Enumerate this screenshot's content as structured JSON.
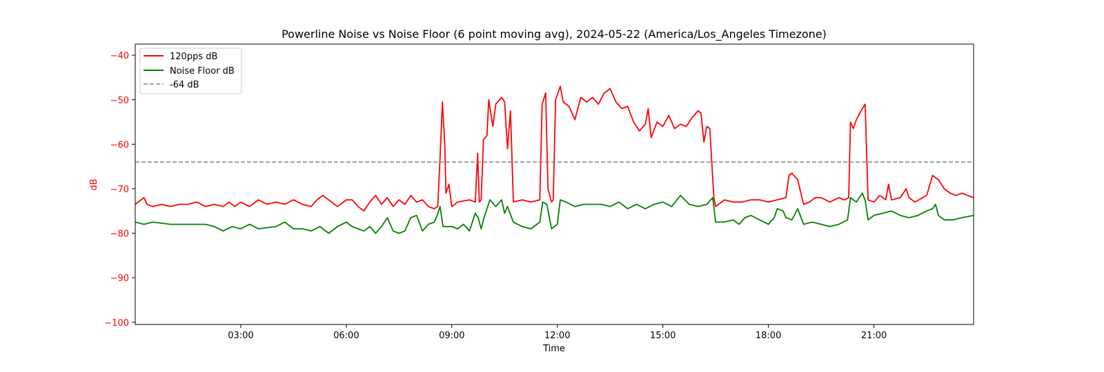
{
  "chart_data": {
    "type": "line",
    "title": "Powerline Noise vs Noise Floor (6 point moving avg), 2024-05-22 (America/Los_Angeles Timezone)",
    "xlabel": "Time",
    "ylabel": "dB",
    "ylabel_color": "#ff0000",
    "ytick_color": "#ff0000",
    "xlim": [
      "00:00",
      "23:50"
    ],
    "ylim": [
      -100.5,
      -37.5
    ],
    "xticks": [
      "03:00",
      "06:00",
      "09:00",
      "12:00",
      "15:00",
      "18:00",
      "21:00"
    ],
    "yticks": [
      -40,
      -50,
      -60,
      -70,
      -80,
      -90,
      -100
    ],
    "ytick_labels": [
      "−40",
      "−50",
      "−60",
      "−70",
      "−80",
      "−90",
      "−100"
    ],
    "grid": false,
    "legend_position": "top-left",
    "series": [
      {
        "name": "120pps dB",
        "color": "#ff0000",
        "style": "solid",
        "points": [
          [
            "00:00",
            -73.5
          ],
          [
            "00:10",
            -72.5
          ],
          [
            "00:15",
            -72.0
          ],
          [
            "00:20",
            -73.5
          ],
          [
            "00:30",
            -74.0
          ],
          [
            "00:45",
            -73.5
          ],
          [
            "01:00",
            -74.0
          ],
          [
            "01:15",
            -73.5
          ],
          [
            "01:30",
            -73.5
          ],
          [
            "01:45",
            -73.0
          ],
          [
            "02:00",
            -74.0
          ],
          [
            "02:15",
            -73.5
          ],
          [
            "02:30",
            -74.0
          ],
          [
            "02:40",
            -73.0
          ],
          [
            "02:50",
            -74.0
          ],
          [
            "03:00",
            -73.0
          ],
          [
            "03:15",
            -74.0
          ],
          [
            "03:30",
            -72.5
          ],
          [
            "03:45",
            -73.5
          ],
          [
            "04:00",
            -73.0
          ],
          [
            "04:15",
            -73.5
          ],
          [
            "04:30",
            -72.5
          ],
          [
            "04:45",
            -73.5
          ],
          [
            "05:00",
            -74.0
          ],
          [
            "05:10",
            -72.5
          ],
          [
            "05:20",
            -71.5
          ],
          [
            "05:30",
            -72.5
          ],
          [
            "05:45",
            -74.0
          ],
          [
            "06:00",
            -72.5
          ],
          [
            "06:10",
            -72.5
          ],
          [
            "06:20",
            -74.0
          ],
          [
            "06:30",
            -75.0
          ],
          [
            "06:40",
            -73.0
          ],
          [
            "06:50",
            -71.5
          ],
          [
            "07:00",
            -73.5
          ],
          [
            "07:10",
            -72.0
          ],
          [
            "07:20",
            -74.0
          ],
          [
            "07:30",
            -72.5
          ],
          [
            "07:40",
            -73.5
          ],
          [
            "07:50",
            -71.5
          ],
          [
            "08:00",
            -73.0
          ],
          [
            "08:10",
            -72.5
          ],
          [
            "08:20",
            -74.0
          ],
          [
            "08:30",
            -74.5
          ],
          [
            "08:36",
            -74.0
          ],
          [
            "08:40",
            -63.0
          ],
          [
            "08:44",
            -50.5
          ],
          [
            "08:48",
            -60.0
          ],
          [
            "08:50",
            -71.0
          ],
          [
            "08:55",
            -69.0
          ],
          [
            "09:00",
            -74.0
          ],
          [
            "09:10",
            -73.0
          ],
          [
            "09:30",
            -72.5
          ],
          [
            "09:40",
            -73.0
          ],
          [
            "09:44",
            -62.0
          ],
          [
            "09:47",
            -73.0
          ],
          [
            "09:50",
            -72.5
          ],
          [
            "09:54",
            -59.0
          ],
          [
            "10:00",
            -58.0
          ],
          [
            "10:03",
            -50.0
          ],
          [
            "10:10",
            -56.0
          ],
          [
            "10:15",
            -51.0
          ],
          [
            "10:25",
            -49.5
          ],
          [
            "10:30",
            -50.5
          ],
          [
            "10:35",
            -61.0
          ],
          [
            "10:40",
            -52.5
          ],
          [
            "10:45",
            -73.0
          ],
          [
            "11:00",
            -72.5
          ],
          [
            "11:15",
            -73.0
          ],
          [
            "11:30",
            -72.5
          ],
          [
            "11:34",
            -51.0
          ],
          [
            "11:40",
            -48.5
          ],
          [
            "11:44",
            -70.0
          ],
          [
            "11:50",
            -73.0
          ],
          [
            "11:53",
            -72.5
          ],
          [
            "11:57",
            -50.0
          ],
          [
            "12:05",
            -47.0
          ],
          [
            "12:10",
            -50.5
          ],
          [
            "12:20",
            -51.5
          ],
          [
            "12:30",
            -54.5
          ],
          [
            "12:40",
            -49.5
          ],
          [
            "12:50",
            -50.5
          ],
          [
            "13:00",
            -49.5
          ],
          [
            "13:10",
            -51.0
          ],
          [
            "13:20",
            -48.5
          ],
          [
            "13:30",
            -47.5
          ],
          [
            "13:40",
            -50.5
          ],
          [
            "13:50",
            -52.0
          ],
          [
            "14:00",
            -51.5
          ],
          [
            "14:10",
            -55.0
          ],
          [
            "14:20",
            -57.0
          ],
          [
            "14:30",
            -55.5
          ],
          [
            "14:35",
            -52.0
          ],
          [
            "14:40",
            -58.5
          ],
          [
            "14:50",
            -55.0
          ],
          [
            "15:00",
            -56.0
          ],
          [
            "15:10",
            -53.5
          ],
          [
            "15:20",
            -56.5
          ],
          [
            "15:30",
            -55.5
          ],
          [
            "15:40",
            -56.0
          ],
          [
            "15:50",
            -54.0
          ],
          [
            "16:00",
            -52.5
          ],
          [
            "16:05",
            -53.0
          ],
          [
            "16:10",
            -59.5
          ],
          [
            "16:15",
            -56.0
          ],
          [
            "16:20",
            -56.5
          ],
          [
            "16:27",
            -72.0
          ],
          [
            "16:30",
            -74.0
          ],
          [
            "16:45",
            -72.5
          ],
          [
            "17:00",
            -73.0
          ],
          [
            "17:15",
            -73.0
          ],
          [
            "17:30",
            -72.5
          ],
          [
            "17:45",
            -72.5
          ],
          [
            "18:00",
            -73.0
          ],
          [
            "18:15",
            -72.5
          ],
          [
            "18:30",
            -72.0
          ],
          [
            "18:35",
            -67.0
          ],
          [
            "18:40",
            -66.5
          ],
          [
            "18:50",
            -68.0
          ],
          [
            "19:00",
            -73.5
          ],
          [
            "19:10",
            -73.0
          ],
          [
            "19:20",
            -72.0
          ],
          [
            "19:30",
            -72.0
          ],
          [
            "19:45",
            -73.0
          ],
          [
            "20:00",
            -72.0
          ],
          [
            "20:10",
            -72.5
          ],
          [
            "20:17",
            -72.0
          ],
          [
            "20:20",
            -55.0
          ],
          [
            "20:25",
            -56.5
          ],
          [
            "20:30",
            -54.5
          ],
          [
            "20:40",
            -52.0
          ],
          [
            "20:45",
            -51.0
          ],
          [
            "20:50",
            -72.5
          ],
          [
            "21:00",
            -73.0
          ],
          [
            "21:10",
            -71.5
          ],
          [
            "21:20",
            -72.5
          ],
          [
            "21:25",
            -69.0
          ],
          [
            "21:30",
            -72.5
          ],
          [
            "21:45",
            -72.0
          ],
          [
            "21:55",
            -70.0
          ],
          [
            "22:00",
            -72.0
          ],
          [
            "22:10",
            -73.0
          ],
          [
            "22:30",
            -71.5
          ],
          [
            "22:40",
            -67.0
          ],
          [
            "22:50",
            -68.0
          ],
          [
            "23:00",
            -70.0
          ],
          [
            "23:10",
            -71.0
          ],
          [
            "23:20",
            -71.5
          ],
          [
            "23:30",
            -71.0
          ],
          [
            "23:40",
            -71.5
          ],
          [
            "23:50",
            -72.0
          ]
        ]
      },
      {
        "name": "Noise Floor dB",
        "color": "#008000",
        "style": "solid",
        "points": [
          [
            "00:00",
            -77.5
          ],
          [
            "00:15",
            -78.0
          ],
          [
            "00:30",
            -77.5
          ],
          [
            "01:00",
            -78.0
          ],
          [
            "01:30",
            -78.0
          ],
          [
            "02:00",
            -78.0
          ],
          [
            "02:15",
            -78.5
          ],
          [
            "02:30",
            -79.5
          ],
          [
            "02:45",
            -78.5
          ],
          [
            "03:00",
            -79.0
          ],
          [
            "03:15",
            -78.0
          ],
          [
            "03:30",
            -79.0
          ],
          [
            "04:00",
            -78.5
          ],
          [
            "04:15",
            -77.5
          ],
          [
            "04:30",
            -79.0
          ],
          [
            "04:45",
            -79.0
          ],
          [
            "05:00",
            -79.5
          ],
          [
            "05:15",
            -78.5
          ],
          [
            "05:30",
            -80.0
          ],
          [
            "05:45",
            -78.5
          ],
          [
            "06:00",
            -77.5
          ],
          [
            "06:10",
            -78.5
          ],
          [
            "06:20",
            -79.0
          ],
          [
            "06:30",
            -79.5
          ],
          [
            "06:40",
            -78.5
          ],
          [
            "06:50",
            -80.0
          ],
          [
            "07:00",
            -78.5
          ],
          [
            "07:10",
            -76.5
          ],
          [
            "07:20",
            -79.5
          ],
          [
            "07:30",
            -80.0
          ],
          [
            "07:40",
            -79.5
          ],
          [
            "07:50",
            -76.5
          ],
          [
            "08:00",
            -76.0
          ],
          [
            "08:10",
            -79.5
          ],
          [
            "08:20",
            -78.0
          ],
          [
            "08:30",
            -77.5
          ],
          [
            "08:35",
            -76.0
          ],
          [
            "08:40",
            -74.0
          ],
          [
            "08:45",
            -78.5
          ],
          [
            "09:00",
            -78.5
          ],
          [
            "09:10",
            -79.0
          ],
          [
            "09:20",
            -78.0
          ],
          [
            "09:30",
            -79.5
          ],
          [
            "09:40",
            -75.5
          ],
          [
            "09:45",
            -76.5
          ],
          [
            "09:50",
            -79.0
          ],
          [
            "09:55",
            -76.5
          ],
          [
            "10:05",
            -72.5
          ],
          [
            "10:15",
            -74.0
          ],
          [
            "10:25",
            -72.5
          ],
          [
            "10:30",
            -75.5
          ],
          [
            "10:35",
            -74.0
          ],
          [
            "10:45",
            -77.5
          ],
          [
            "11:00",
            -78.5
          ],
          [
            "11:15",
            -79.0
          ],
          [
            "11:30",
            -77.5
          ],
          [
            "11:35",
            -73.0
          ],
          [
            "11:42",
            -73.5
          ],
          [
            "11:50",
            -79.0
          ],
          [
            "12:00",
            -78.0
          ],
          [
            "12:05",
            -72.5
          ],
          [
            "12:15",
            -73.0
          ],
          [
            "12:30",
            -74.0
          ],
          [
            "12:45",
            -73.5
          ],
          [
            "13:00",
            -73.5
          ],
          [
            "13:15",
            -73.5
          ],
          [
            "13:30",
            -74.0
          ],
          [
            "13:45",
            -73.0
          ],
          [
            "14:00",
            -74.5
          ],
          [
            "14:15",
            -73.5
          ],
          [
            "14:30",
            -74.5
          ],
          [
            "14:45",
            -73.5
          ],
          [
            "15:00",
            -73.0
          ],
          [
            "15:15",
            -74.0
          ],
          [
            "15:30",
            -71.5
          ],
          [
            "15:45",
            -73.5
          ],
          [
            "16:00",
            -74.0
          ],
          [
            "16:15",
            -73.5
          ],
          [
            "16:25",
            -72.0
          ],
          [
            "16:30",
            -77.5
          ],
          [
            "16:45",
            -77.5
          ],
          [
            "17:00",
            -77.0
          ],
          [
            "17:10",
            -78.0
          ],
          [
            "17:20",
            -76.5
          ],
          [
            "17:30",
            -76.0
          ],
          [
            "17:45",
            -77.0
          ],
          [
            "18:00",
            -78.0
          ],
          [
            "18:10",
            -76.5
          ],
          [
            "18:15",
            -74.5
          ],
          [
            "18:25",
            -75.0
          ],
          [
            "18:30",
            -76.5
          ],
          [
            "18:40",
            -77.0
          ],
          [
            "18:50",
            -74.5
          ],
          [
            "19:00",
            -78.0
          ],
          [
            "19:15",
            -77.5
          ],
          [
            "19:30",
            -78.0
          ],
          [
            "19:45",
            -78.5
          ],
          [
            "20:00",
            -78.0
          ],
          [
            "20:15",
            -77.0
          ],
          [
            "20:20",
            -72.0
          ],
          [
            "20:30",
            -73.0
          ],
          [
            "20:40",
            -71.0
          ],
          [
            "20:45",
            -72.5
          ],
          [
            "20:50",
            -77.0
          ],
          [
            "21:00",
            -76.0
          ],
          [
            "21:15",
            -75.5
          ],
          [
            "21:30",
            -75.0
          ],
          [
            "21:45",
            -76.0
          ],
          [
            "22:00",
            -76.5
          ],
          [
            "22:15",
            -76.0
          ],
          [
            "22:30",
            -75.0
          ],
          [
            "22:40",
            -74.5
          ],
          [
            "22:45",
            -73.5
          ],
          [
            "22:50",
            -76.0
          ],
          [
            "23:00",
            -77.0
          ],
          [
            "23:15",
            -77.0
          ],
          [
            "23:30",
            -76.5
          ],
          [
            "23:50",
            -76.0
          ]
        ]
      },
      {
        "name": "-64 dB",
        "color": "#808080",
        "style": "dashed",
        "points": [
          [
            "00:00",
            -64
          ],
          [
            "23:50",
            -64
          ]
        ]
      }
    ]
  }
}
